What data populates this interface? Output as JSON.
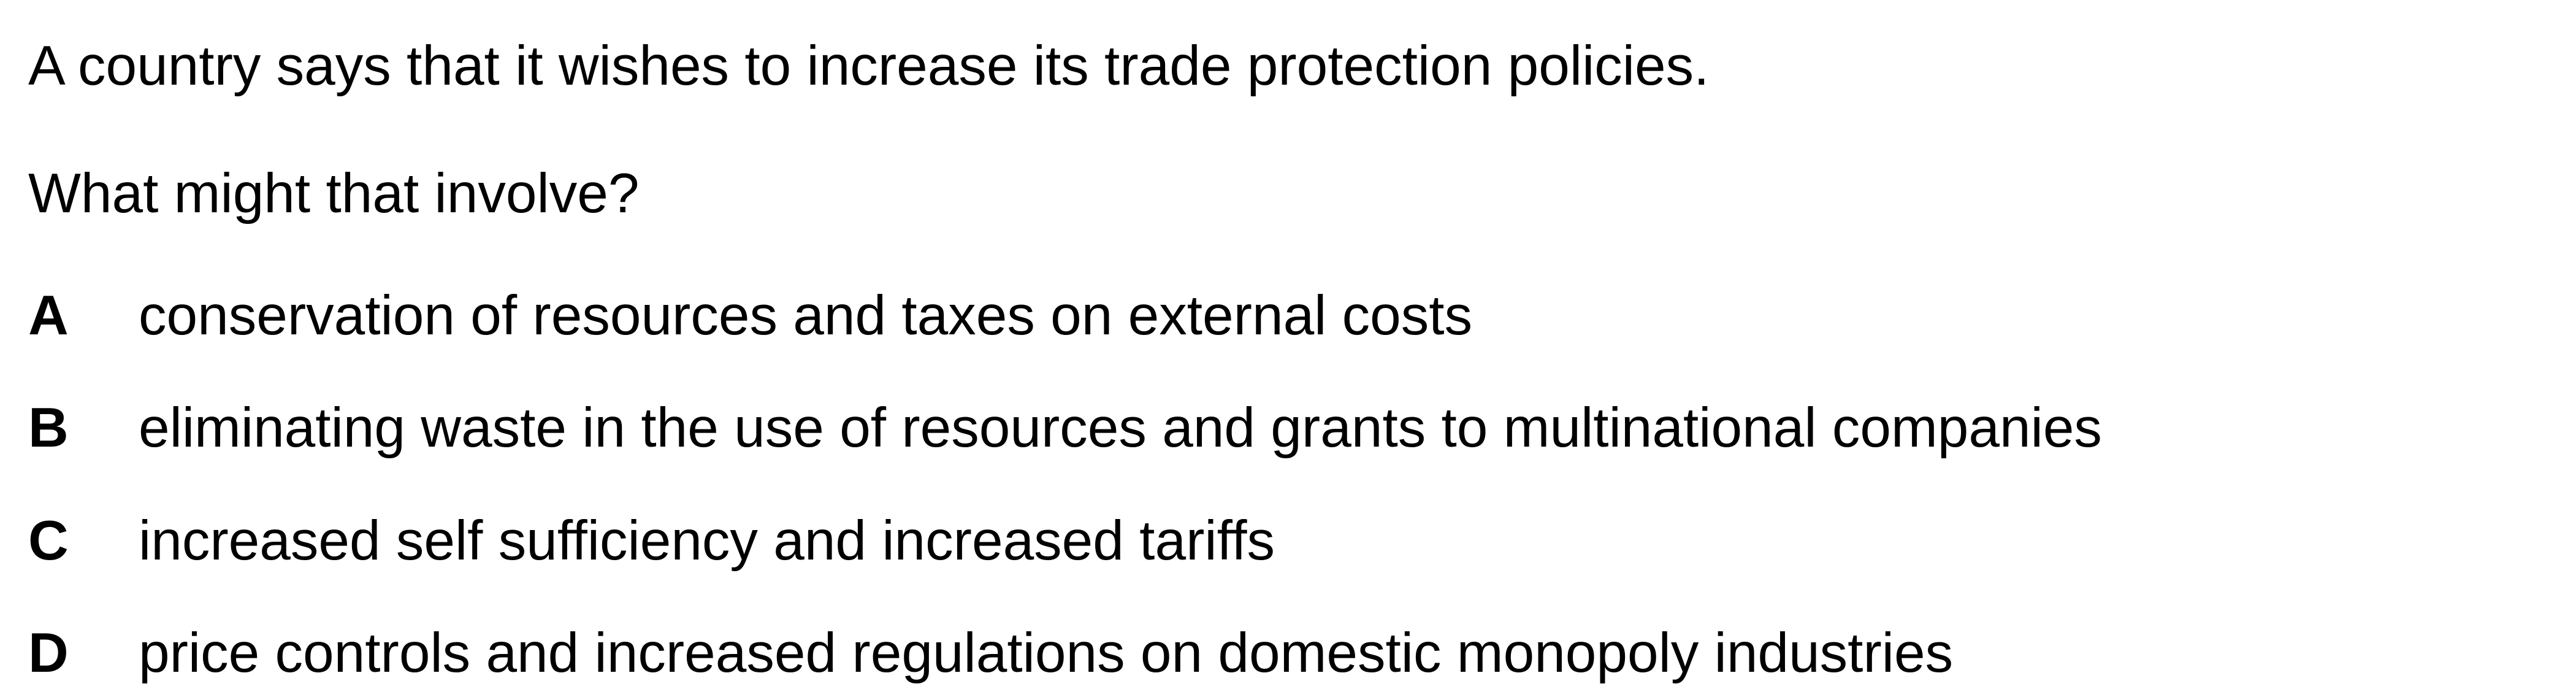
{
  "question": {
    "stem": "A country says that it wishes to increase its trade protection policies.",
    "prompt": "What might that involve?",
    "options": [
      {
        "letter": "A",
        "text": "conservation of resources and taxes on external costs"
      },
      {
        "letter": "B",
        "text": "eliminating waste in the use of resources and grants to multinational companies"
      },
      {
        "letter": "C",
        "text": "increased self sufficiency and increased tariffs"
      },
      {
        "letter": "D",
        "text": "price controls and increased regulations on domestic monopoly industries"
      }
    ]
  }
}
